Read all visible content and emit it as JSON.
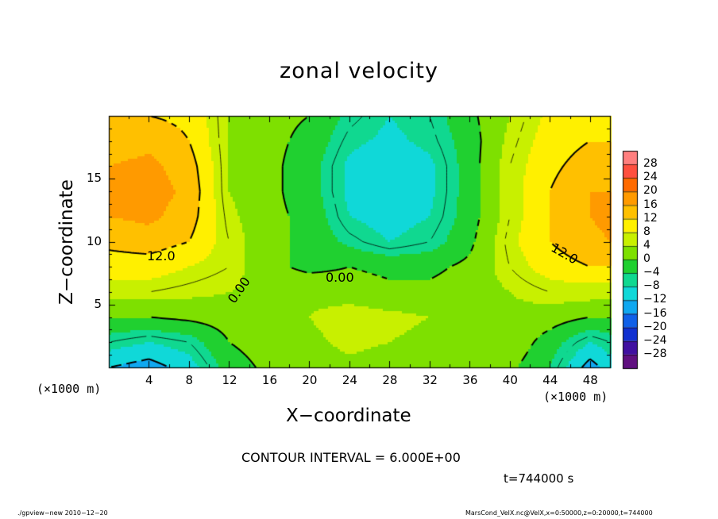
{
  "title": "zonal velocity",
  "xaxis": {
    "label": "X−coordinate",
    "unit_left": "(×1000 m)",
    "unit_right": "(×1000 m)",
    "ticks": [
      4,
      8,
      12,
      16,
      20,
      24,
      28,
      32,
      36,
      40,
      44,
      48
    ]
  },
  "yaxis": {
    "label": "Z−coordinate",
    "ticks": [
      5,
      10,
      15
    ]
  },
  "colorbar": {
    "labels": [
      "28",
      "24",
      "20",
      "16",
      "12",
      "8",
      "4",
      "0",
      "−4",
      "−8",
      "−12",
      "−16",
      "−20",
      "−24",
      "−28"
    ],
    "colors": [
      "#ff7f7f",
      "#ff4f3f",
      "#ff6a00",
      "#ff9a00",
      "#ffc000",
      "#fff000",
      "#c8f000",
      "#7ee000",
      "#20d030",
      "#10d890",
      "#10d8d8",
      "#10a8f0",
      "#1060e8",
      "#1030d0",
      "#4010a0",
      "#601080"
    ]
  },
  "contour_labels": [
    "12.0",
    "0.00",
    "0.00",
    "12.0"
  ],
  "contour_interval": "CONTOUR INTERVAL = 6.000E+00",
  "time_label": "t=744000 s",
  "footer_left": "./gpview−new   2010−12−20",
  "footer_right": "MarsCond_VelX.nc@VelX,x=0:50000,z=0:20000,t=744000",
  "chart_data": {
    "type": "heatmap",
    "title": "zonal velocity",
    "xlabel": "X−coordinate",
    "ylabel": "Z−coordinate",
    "xlim": [
      0,
      50
    ],
    "ylim": [
      0,
      20
    ],
    "x_unit": "×1000 m",
    "contour_interval": 6.0,
    "time": "744000 s",
    "color_levels": [
      -28,
      -24,
      -20,
      -16,
      -12,
      -8,
      -4,
      0,
      4,
      8,
      12,
      16,
      20,
      24,
      28
    ],
    "grid_x": [
      0,
      4,
      8,
      12,
      16,
      20,
      24,
      28,
      32,
      36,
      40,
      44,
      48,
      50
    ],
    "grid_z": [
      0,
      2,
      4,
      6,
      8,
      10,
      12,
      14,
      16,
      18,
      20
    ],
    "values": [
      [
        -12,
        -14,
        -10,
        -2,
        1,
        2,
        3,
        2,
        3,
        2,
        1,
        -4,
        -14,
        -10
      ],
      [
        -6,
        -8,
        -6,
        0,
        2,
        3,
        5,
        4,
        3,
        3,
        3,
        -2,
        -8,
        -6
      ],
      [
        0,
        0,
        1,
        2,
        3,
        4,
        6,
        5,
        4,
        3,
        3,
        2,
        0,
        0
      ],
      [
        6,
        6,
        5,
        4,
        3,
        3,
        2,
        1,
        1,
        2,
        4,
        6,
        6,
        6
      ],
      [
        10,
        10,
        8,
        6,
        1,
        -1,
        0,
        -1,
        -1,
        1,
        6,
        10,
        12,
        12
      ],
      [
        13,
        14,
        12,
        6,
        1,
        -1,
        -5,
        -8,
        -6,
        -1,
        7,
        12,
        15,
        16
      ],
      [
        16,
        17,
        14,
        5,
        1,
        -1,
        -8,
        -10,
        -8,
        -2,
        6,
        12,
        16,
        17
      ],
      [
        17,
        18,
        15,
        4,
        1,
        -2,
        -9,
        -11,
        -9,
        -2,
        6,
        12,
        16,
        16
      ],
      [
        16,
        17,
        14,
        4,
        1,
        -2,
        -9,
        -11,
        -9,
        -2,
        6,
        11,
        14,
        14
      ],
      [
        14,
        15,
        12,
        4,
        1,
        -1,
        -7,
        -9,
        -7,
        -2,
        5,
        10,
        12,
        12
      ],
      [
        12,
        12,
        11,
        4,
        1,
        0,
        -5,
        -8,
        -6,
        -1,
        4,
        9,
        10,
        10
      ]
    ],
    "contour_labels": [
      "12.0",
      "0.00",
      "0.00",
      "12.0"
    ]
  }
}
